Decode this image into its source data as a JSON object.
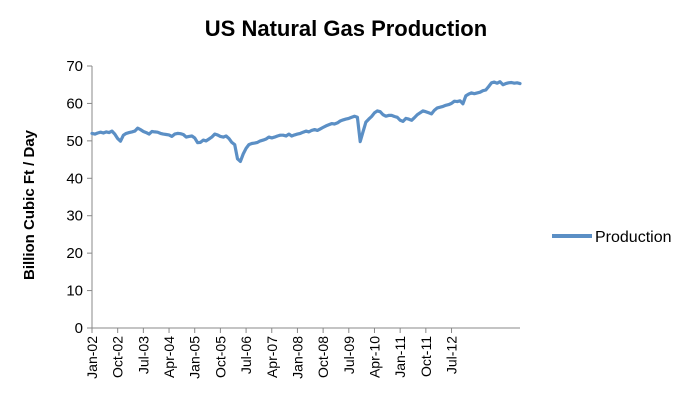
{
  "chart_data": {
    "type": "line",
    "title": "US Natural Gas Production",
    "ylabel": "Billion Cubic Ft / Day",
    "xlabel": "",
    "ylim": [
      0,
      70
    ],
    "yticks": [
      "0",
      "10",
      "20",
      "30",
      "40",
      "50",
      "60",
      "70"
    ],
    "xtick_labels": [
      "Jan-02",
      "Oct-02",
      "Jul-03",
      "Apr-04",
      "Jan-05",
      "Oct-05",
      "Jul-06",
      "Apr-07",
      "Jan-08",
      "Oct-08",
      "Jul-09",
      "Apr-10",
      "Jan-11",
      "Oct-11",
      "Jul-12"
    ],
    "grid": false,
    "legend_position": "right",
    "series": [
      {
        "name": "Production",
        "color": "#5b8fc5",
        "x_start": "Jan-02",
        "x_end": "Jul-12",
        "frequency": "monthly",
        "values": [
          52.0,
          51.8,
          52.1,
          52.3,
          52.1,
          52.4,
          52.2,
          52.6,
          51.8,
          50.6,
          49.9,
          51.5,
          52.0,
          52.2,
          52.4,
          52.6,
          53.4,
          53.0,
          52.5,
          52.2,
          51.8,
          52.5,
          52.4,
          52.3,
          52.0,
          51.8,
          51.7,
          51.6,
          51.2,
          51.8,
          52.0,
          51.9,
          51.7,
          51.0,
          51.2,
          51.3,
          50.8,
          49.5,
          49.6,
          50.2,
          50.0,
          50.5,
          51.0,
          51.8,
          51.6,
          51.2,
          51.0,
          51.3,
          50.6,
          49.6,
          49.0,
          45.2,
          44.5,
          46.5,
          48.0,
          49.0,
          49.3,
          49.4,
          49.6,
          50.0,
          50.2,
          50.5,
          51.0,
          50.8,
          51.0,
          51.3,
          51.5,
          51.5,
          51.3,
          51.8,
          51.3,
          51.6,
          51.8,
          52.0,
          52.3,
          52.6,
          52.4,
          52.8,
          53.0,
          52.8,
          53.2,
          53.6,
          54.0,
          54.3,
          54.6,
          54.5,
          54.8,
          55.3,
          55.6,
          55.8,
          56.0,
          56.3,
          56.6,
          56.3,
          49.8,
          52.5,
          55.0,
          55.8,
          56.5,
          57.5,
          58.0,
          57.8,
          57.0,
          56.6,
          56.8,
          56.8,
          56.5,
          56.3,
          55.5,
          55.2,
          56.0,
          55.8,
          55.5,
          56.2,
          57.0,
          57.5,
          58.0,
          57.8,
          57.5,
          57.2,
          58.2,
          58.8,
          59.0,
          59.2,
          59.5,
          59.7,
          60.0,
          60.6,
          60.5,
          60.7,
          59.9,
          62.0,
          62.5,
          62.8,
          62.6,
          62.8,
          63.0,
          63.4,
          63.6,
          64.5,
          65.5,
          65.7,
          65.4,
          65.8,
          65.0,
          65.3,
          65.5,
          65.6,
          65.4,
          65.5,
          65.3
        ]
      }
    ]
  }
}
